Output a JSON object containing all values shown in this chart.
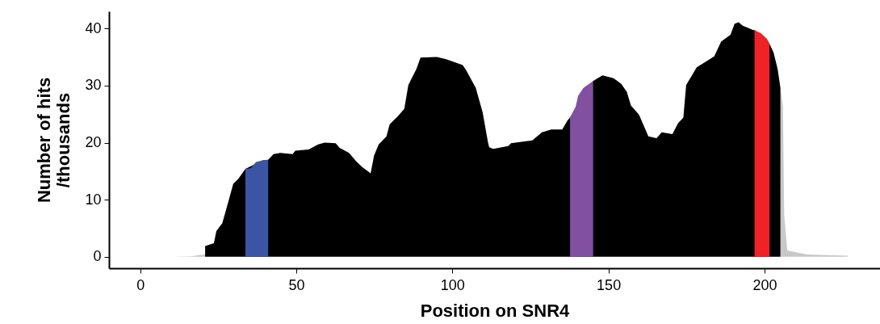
{
  "chart_data": {
    "type": "area",
    "xlabel": "Position on SNR4",
    "ylabel": "Number of hits\n/thousands",
    "xlim": [
      -10,
      237
    ],
    "ylim": [
      -2,
      43
    ],
    "xticks": [
      0,
      50,
      100,
      150,
      200
    ],
    "yticks": [
      0,
      10,
      20,
      30,
      40
    ],
    "grid": false,
    "series": [
      {
        "color": "#c8c8c8",
        "x": [
          0,
          10,
          16,
          19,
          20.8
        ],
        "values": [
          0,
          0,
          0.1,
          0.3,
          0.4
        ]
      },
      {
        "color": "#c8c8c8",
        "x": [
          205.1,
          205.9,
          206.3,
          207.3,
          213.7,
          226.7
        ],
        "values": [
          29.6,
          26.3,
          7.3,
          1.1,
          0.4,
          0.2
        ]
      },
      {
        "color": "#000000",
        "x": [
          20.8,
          20.8,
          23.6,
          24.4,
          26.3,
          28.1,
          29.8,
          31.5,
          33.7,
          39.2,
          41.0,
          42.7,
          44.9,
          48.8,
          49.7,
          54,
          57,
          59.1,
          62.6,
          63.9,
          66.9,
          69.1,
          71.2,
          73.4,
          73.8,
          74.9,
          76.4,
          78.9,
          79.9,
          82.5,
          84.6,
          85.9,
          88.5,
          89.8,
          95,
          98,
          103.3,
          104.4,
          107.5,
          109.7,
          111.4,
          111.8,
          113.1,
          117.9,
          118.8,
          125.6,
          128.7,
          131.7,
          135.2,
          136.9,
          137.7,
          145.1,
          148.1,
          151.6,
          154.1,
          155.9,
          157.2,
          159.8,
          162.8,
          165.4,
          167.1,
          170.5,
          172.3,
          174,
          174.9,
          178.3,
          180.9,
          183.9,
          186.1,
          189.1,
          190.4,
          191.7,
          193,
          196.4,
          196.8,
          200.7,
          201.6,
          202.9,
          204.2,
          205.1,
          205.1
        ],
        "values": [
          0,
          1.9,
          2.4,
          4.5,
          5.9,
          9.4,
          12.8,
          13.7,
          15.4,
          16.9,
          17.0,
          18.0,
          18.2,
          18.0,
          18.6,
          18.8,
          19.7,
          20.0,
          19.9,
          19.1,
          18.2,
          16.8,
          15.7,
          14.8,
          14.6,
          17.7,
          19.7,
          21.1,
          23.2,
          24.6,
          25.9,
          30.1,
          32.9,
          34.9,
          35.0,
          34.6,
          33.6,
          32.7,
          29.6,
          25.3,
          20.1,
          19.2,
          18.9,
          19.4,
          19.9,
          20.4,
          21.8,
          22.3,
          22.3,
          23.9,
          24.4,
          30.8,
          31.8,
          31.3,
          30.3,
          28.9,
          26.5,
          24.9,
          21.1,
          20.8,
          21.8,
          21.5,
          23.4,
          24.4,
          30.1,
          33.2,
          34.1,
          35.1,
          37.7,
          38.9,
          40.8,
          41.1,
          40.5,
          39.7,
          39.7,
          38.2,
          37.3,
          35.8,
          32.9,
          29.6,
          0
        ]
      },
      {
        "color": "#3a55a4",
        "x": [
          33.7,
          35.4,
          37.1,
          39.2,
          41.0
        ],
        "values": [
          15.4,
          15.5,
          16.6,
          16.9,
          17.0
        ]
      },
      {
        "color": "#8150a0",
        "x": [
          137.7,
          139.5,
          140.3,
          142.0,
          145.1
        ],
        "values": [
          24.4,
          26.3,
          28.2,
          29.6,
          30.8
        ]
      },
      {
        "color": "#ee2227",
        "x": [
          196.8,
          199.0,
          200.7,
          201.6
        ],
        "values": [
          39.7,
          39.1,
          38.2,
          37.3
        ]
      }
    ]
  }
}
